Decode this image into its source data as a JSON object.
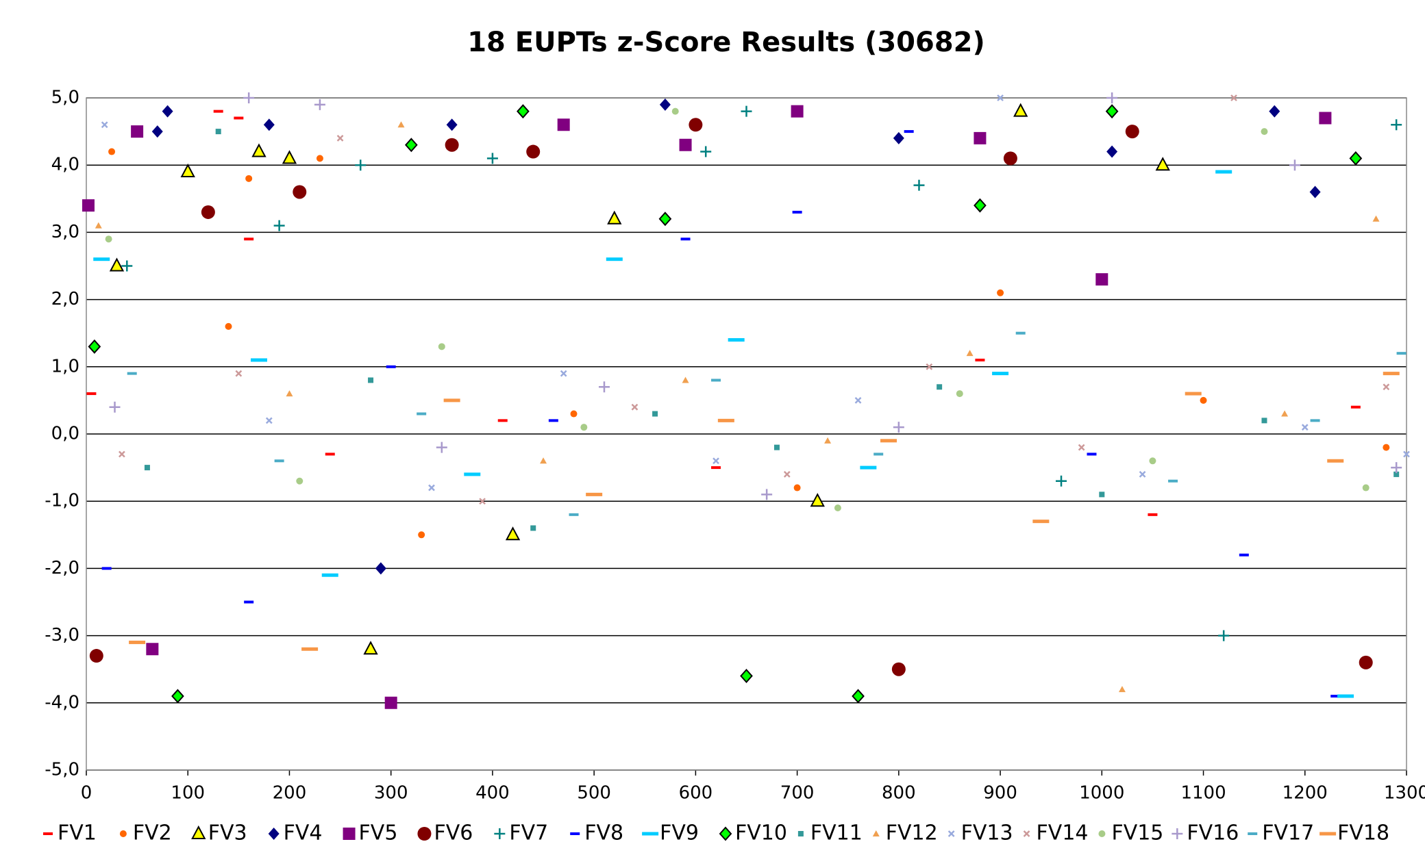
{
  "chart_data": {
    "type": "scatter",
    "title": "18 EUPTs z-Score Results (30682)",
    "xlim": [
      0,
      1300
    ],
    "xticks": [
      0,
      100,
      200,
      300,
      400,
      500,
      600,
      700,
      800,
      900,
      1000,
      1100,
      1200,
      1300
    ],
    "ylim": [
      -5,
      5
    ],
    "yticks": [
      {
        "value": -5,
        "label": "-5,0"
      },
      {
        "value": -4,
        "label": "-4,0"
      },
      {
        "value": -3,
        "label": "-3,0"
      },
      {
        "value": -2,
        "label": "-2,0"
      },
      {
        "value": -1,
        "label": "-1,0"
      },
      {
        "value": 0,
        "label": "0,0"
      },
      {
        "value": 1,
        "label": "1,0"
      },
      {
        "value": 2,
        "label": "2,0"
      },
      {
        "value": 3,
        "label": "3,0"
      },
      {
        "value": 4,
        "label": "4,0"
      },
      {
        "value": 5,
        "label": "5,0"
      }
    ],
    "grid": true,
    "legend": "bottom",
    "series": [
      {
        "name": "FV1",
        "color": "#ff0000",
        "marker": "dash",
        "x": [
          5,
          130,
          150,
          160,
          240,
          410,
          620,
          880,
          1050,
          1250
        ],
        "values": [
          0.6,
          4.8,
          4.7,
          2.9,
          -0.3,
          0.2,
          -0.5,
          1.1,
          -1.2,
          0.4
        ]
      },
      {
        "name": "FV2",
        "color": "#ff6600",
        "marker": "circle-small",
        "x": [
          25,
          140,
          160,
          230,
          330,
          480,
          700,
          900,
          1100,
          1280
        ],
        "values": [
          4.2,
          1.6,
          3.8,
          4.1,
          -1.5,
          0.3,
          -0.8,
          2.1,
          0.5,
          -0.2
        ]
      },
      {
        "name": "FV3",
        "color": "#ffff00",
        "marker": "triangle",
        "x": [
          30,
          100,
          170,
          200,
          280,
          420,
          520,
          720,
          920,
          1060
        ],
        "values": [
          2.5,
          3.9,
          4.2,
          4.1,
          -3.2,
          -1.5,
          3.2,
          -1.0,
          4.8,
          4.0
        ]
      },
      {
        "name": "FV4",
        "color": "#000080",
        "marker": "diamond",
        "x": [
          70,
          80,
          180,
          290,
          360,
          570,
          800,
          1010,
          1170,
          1210
        ],
        "values": [
          4.5,
          4.8,
          4.6,
          -2.0,
          4.6,
          4.9,
          4.4,
          4.2,
          4.8,
          3.6
        ]
      },
      {
        "name": "FV5",
        "color": "#800080",
        "marker": "square",
        "x": [
          2,
          50,
          65,
          300,
          470,
          590,
          700,
          880,
          1000,
          1220
        ],
        "values": [
          3.4,
          4.5,
          -3.2,
          -4.0,
          4.6,
          4.3,
          4.8,
          4.4,
          2.3,
          4.7
        ]
      },
      {
        "name": "FV6",
        "color": "#800000",
        "marker": "circle",
        "x": [
          10,
          120,
          210,
          360,
          440,
          600,
          800,
          910,
          1030,
          1260
        ],
        "values": [
          -3.3,
          3.3,
          3.6,
          4.3,
          4.2,
          4.6,
          -3.5,
          4.1,
          4.5,
          -3.4
        ]
      },
      {
        "name": "FV7",
        "color": "#008080",
        "marker": "plus",
        "x": [
          40,
          190,
          270,
          400,
          610,
          650,
          820,
          960,
          1120,
          1290
        ],
        "values": [
          2.5,
          3.1,
          4.0,
          4.1,
          4.2,
          4.8,
          3.7,
          -0.7,
          -3.0,
          4.6
        ]
      },
      {
        "name": "FV8",
        "color": "#0000ff",
        "marker": "dash",
        "x": [
          20,
          160,
          300,
          460,
          590,
          700,
          810,
          990,
          1140,
          1230
        ],
        "values": [
          -2.0,
          -2.5,
          1.0,
          0.2,
          2.9,
          3.3,
          4.5,
          -0.3,
          -1.8,
          -3.9
        ]
      },
      {
        "name": "FV9",
        "color": "#00ccff",
        "marker": "dash-wide",
        "x": [
          15,
          170,
          240,
          380,
          520,
          640,
          770,
          900,
          1120,
          1240
        ],
        "values": [
          2.6,
          1.1,
          -2.1,
          -0.6,
          2.6,
          1.4,
          -0.5,
          0.9,
          3.9,
          -3.9
        ]
      },
      {
        "name": "FV10",
        "color": "#00ff00",
        "marker": "diamond-outline",
        "x": [
          8,
          90,
          320,
          430,
          570,
          650,
          760,
          880,
          1010,
          1250
        ],
        "values": [
          1.3,
          -3.9,
          4.3,
          4.8,
          3.2,
          -3.6,
          -3.9,
          3.4,
          4.8,
          4.1
        ]
      },
      {
        "name": "FV11",
        "color": "#339999",
        "marker": "square-small",
        "x": [
          60,
          130,
          280,
          440,
          560,
          680,
          840,
          1000,
          1160,
          1290
        ],
        "values": [
          -0.5,
          4.5,
          0.8,
          -1.4,
          0.3,
          -0.2,
          0.7,
          -0.9,
          0.2,
          -0.6
        ]
      },
      {
        "name": "FV12",
        "color": "#f0a050",
        "marker": "triangle-small",
        "x": [
          12,
          200,
          310,
          450,
          590,
          730,
          870,
          1020,
          1180,
          1270
        ],
        "values": [
          3.1,
          0.6,
          4.6,
          -0.4,
          0.8,
          -0.1,
          1.2,
          -3.8,
          0.3,
          3.2
        ]
      },
      {
        "name": "FV13",
        "color": "#99aadd",
        "marker": "x",
        "x": [
          18,
          180,
          340,
          470,
          620,
          760,
          900,
          1040,
          1200,
          1300
        ],
        "values": [
          4.6,
          0.2,
          -0.8,
          0.9,
          -0.4,
          0.5,
          5.0,
          -0.6,
          0.1,
          -0.3
        ]
      },
      {
        "name": "FV14",
        "color": "#cc9999",
        "marker": "x",
        "x": [
          35,
          150,
          250,
          390,
          540,
          690,
          830,
          980,
          1130,
          1280
        ],
        "values": [
          -0.3,
          0.9,
          4.4,
          -1.0,
          0.4,
          -0.6,
          1.0,
          -0.2,
          5.0,
          0.7
        ]
      },
      {
        "name": "FV15",
        "color": "#a8cc88",
        "marker": "circle-small",
        "x": [
          22,
          210,
          350,
          490,
          580,
          740,
          860,
          1050,
          1160,
          1260
        ],
        "values": [
          2.9,
          -0.7,
          1.3,
          0.1,
          4.8,
          -1.1,
          0.6,
          -0.4,
          4.5,
          -0.8
        ]
      },
      {
        "name": "FV16",
        "color": "#a899cc",
        "marker": "plus",
        "x": [
          28,
          160,
          230,
          350,
          510,
          670,
          800,
          1010,
          1190,
          1290
        ],
        "values": [
          0.4,
          5.0,
          4.9,
          -0.2,
          0.7,
          -0.9,
          0.1,
          5.0,
          4.0,
          -0.5
        ]
      },
      {
        "name": "FV17",
        "color": "#4bacc6",
        "marker": "dash",
        "x": [
          45,
          190,
          330,
          480,
          620,
          780,
          920,
          1070,
          1210,
          1295
        ],
        "values": [
          0.9,
          -0.4,
          0.3,
          -1.2,
          0.8,
          -0.3,
          1.5,
          -0.7,
          0.2,
          1.2
        ]
      },
      {
        "name": "FV18",
        "color": "#f79646",
        "marker": "dash-wide",
        "x": [
          50,
          220,
          360,
          500,
          630,
          790,
          940,
          1090,
          1230,
          1285
        ],
        "values": [
          -3.1,
          -3.2,
          0.5,
          -0.9,
          0.2,
          -0.1,
          -1.3,
          0.6,
          -0.4,
          0.9
        ]
      }
    ]
  }
}
